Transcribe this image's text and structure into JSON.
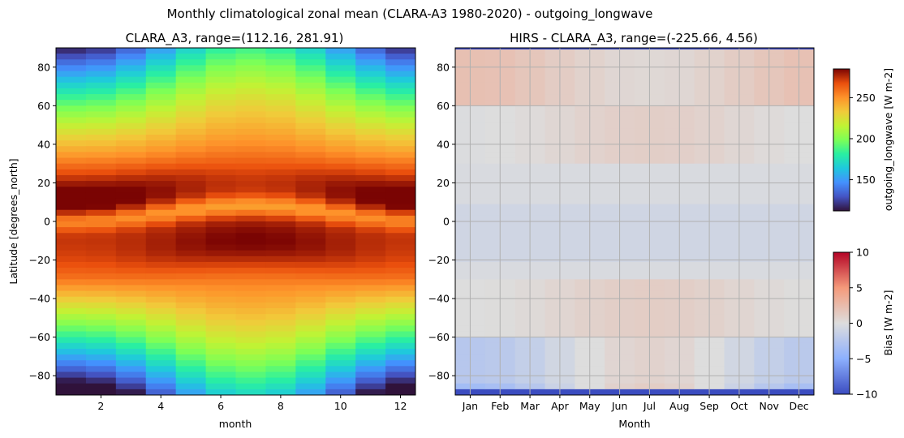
{
  "figure_title": "Monthly climatological zonal mean (CLARA-A3 1980-2020) - outgoing_longwave",
  "chart_data": [
    {
      "type": "heatmap",
      "title": "CLARA_A3, range=(112.16, 281.91)",
      "xlabel": "month",
      "ylabel": "Latitude [degrees_north]",
      "x": [
        1,
        2,
        3,
        4,
        5,
        6,
        7,
        8,
        9,
        10,
        11,
        12
      ],
      "xlim": [
        0.5,
        12.5
      ],
      "xticks": [
        "2",
        "4",
        "6",
        "8",
        "10",
        "12"
      ],
      "ylim": [
        -90,
        90
      ],
      "yticks": [
        "80",
        "60",
        "40",
        "20",
        "0",
        "−20",
        "−40",
        "−60",
        "−80"
      ],
      "colormap": "turbo",
      "value_range": [
        112.16,
        281.91
      ],
      "colorbar": {
        "label": "outgoing_longwave [W m-2]",
        "range": [
          112,
          285
        ],
        "ticks": [
          "150",
          "200",
          "250"
        ]
      }
    },
    {
      "type": "heatmap",
      "title": "HIRS - CLARA_A3, range=(-225.66, 4.56)",
      "xlabel": "Month",
      "ylabel": "",
      "x": [
        "Jan",
        "Feb",
        "Mar",
        "Apr",
        "May",
        "Jun",
        "Jul",
        "Aug",
        "Sep",
        "Oct",
        "Nov",
        "Dec"
      ],
      "ylim": [
        -90,
        90
      ],
      "yticks": [
        "80",
        "60",
        "40",
        "20",
        "0",
        "−20",
        "−40",
        "−60",
        "−80"
      ],
      "grid": true,
      "colormap": "coolwarm",
      "value_range": [
        -225.66,
        4.56
      ],
      "colorbar": {
        "label": "Bias [W m-2]",
        "range": [
          -10,
          10
        ],
        "ticks": [
          "10",
          "5",
          "0",
          "−5",
          "−10"
        ]
      }
    }
  ]
}
